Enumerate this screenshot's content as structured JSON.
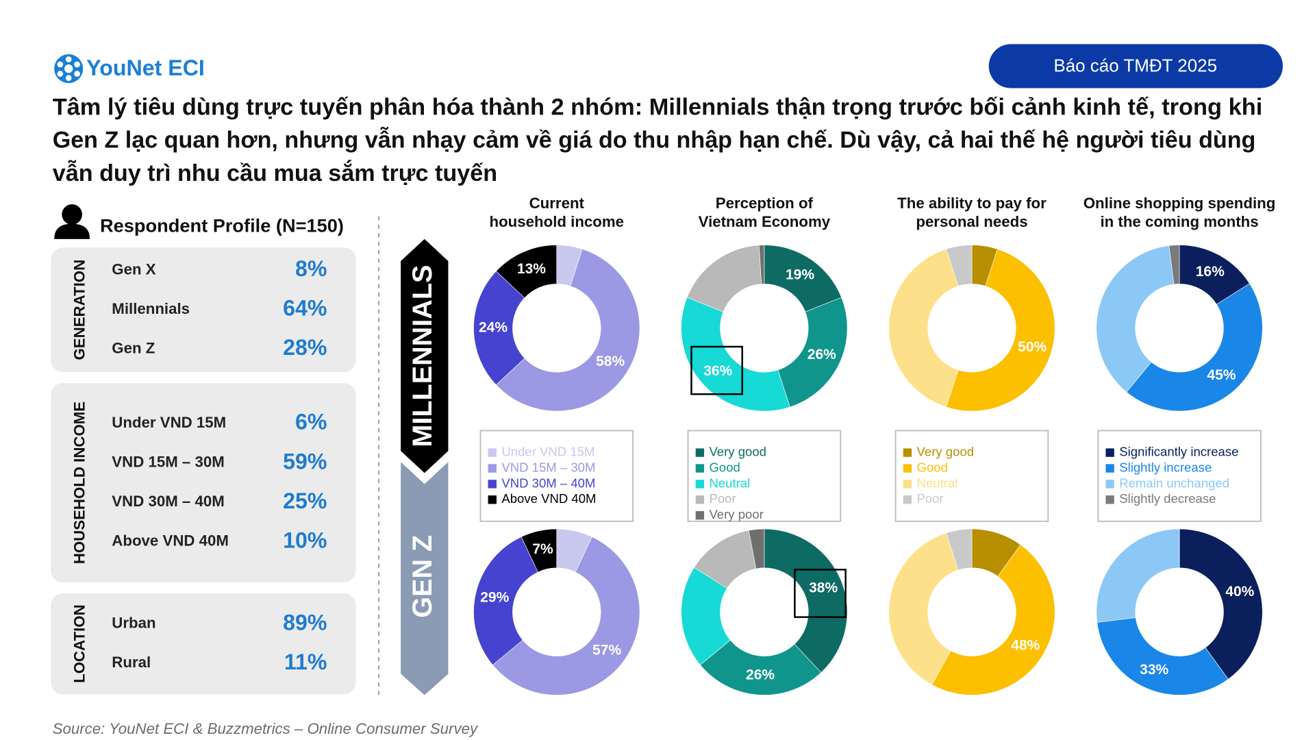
{
  "header": {
    "logo": "YouNet ECI",
    "badge": "Báo cáo TMĐT 2025",
    "title_lines": [
      "Tâm lý tiêu dùng trực tuyến phân hóa thành 2 nhóm: Millennials thận trọng trước bối cảnh kinh tế, trong khi",
      "Gen Z lạc quan hơn, nhưng vẫn nhạy cảm về giá do thu nhập hạn chế. Dù vậy, cả hai thế hệ người tiêu dùng",
      "vẫn duy trì nhu cầu mua sắm trực tuyến"
    ]
  },
  "profile": {
    "title": "Respondent Profile (N=150)",
    "sections": [
      {
        "label": "GENERATION",
        "items": [
          [
            "Gen X",
            "8%"
          ],
          [
            "Millennials",
            "64%"
          ],
          [
            "Gen Z",
            "28%"
          ]
        ]
      },
      {
        "label": "HOUSEHOLD INCOME",
        "items": [
          [
            "Under VND 15M",
            "6%"
          ],
          [
            "VND 15M – 30M",
            "59%"
          ],
          [
            "VND 30M – 40M",
            "25%"
          ],
          [
            "Above VND 40M",
            "10%"
          ]
        ]
      },
      {
        "label": "LOCATION",
        "items": [
          [
            "Urban",
            "89%"
          ],
          [
            "Rural",
            "11%"
          ]
        ]
      }
    ]
  },
  "rows": [
    "MILLENNIALS",
    "GEN Z"
  ],
  "chart_data": [
    {
      "type": "donut",
      "title": [
        "Current",
        "household income"
      ],
      "categories": [
        "Under VND 15M",
        "VND 15M – 30M",
        "VND 30M – 40M",
        "Above VND 40M"
      ],
      "colors": [
        "#c9c8ef",
        "#9b99e3",
        "#4543cf",
        "#000000"
      ],
      "series": [
        {
          "values": [
            5,
            58,
            24,
            13
          ],
          "value_labels": [
            null,
            "58%",
            "24%",
            "13%"
          ]
        },
        {
          "values": [
            7,
            57,
            29,
            7
          ],
          "value_labels": [
            null,
            "57%",
            "29%",
            "7%"
          ]
        }
      ]
    },
    {
      "type": "donut",
      "title": [
        "Perception of",
        "Vietnam Economy"
      ],
      "categories": [
        "Very good",
        "Good",
        "Neutral",
        "Poor",
        "Very poor"
      ],
      "colors": [
        "#0e6b63",
        "#10958d",
        "#17d9d5",
        "#b9b9b9",
        "#6f6f6f"
      ],
      "series": [
        {
          "values": [
            19,
            26,
            36,
            18,
            1
          ],
          "value_labels": [
            "19%",
            "26%",
            "36%",
            null,
            null
          ]
        },
        {
          "values": [
            38,
            26,
            20,
            13,
            3
          ],
          "value_labels": [
            "38%",
            "26%",
            null,
            null,
            null
          ]
        }
      ]
    },
    {
      "type": "donut",
      "title": [
        "The ability to pay for",
        "personal needs"
      ],
      "categories": [
        "Very good",
        "Good",
        "Neutral",
        "Poor"
      ],
      "colors": [
        "#b88f00",
        "#fcc000",
        "#fde08a",
        "#c9c9c9"
      ],
      "series": [
        {
          "values": [
            5,
            50,
            40,
            5
          ],
          "value_labels": [
            null,
            "50%",
            null,
            null
          ]
        },
        {
          "values": [
            10,
            48,
            37,
            5
          ],
          "value_labels": [
            null,
            "48%",
            null,
            null
          ]
        }
      ]
    },
    {
      "type": "donut",
      "title": [
        "Online shopping spending",
        "in the coming months"
      ],
      "categories": [
        "Significantly increase",
        "Slightly increase",
        "Remain unchanged",
        "Slightly decrease"
      ],
      "colors": [
        "#0a1f5c",
        "#1a86e8",
        "#8cc8f5",
        "#7a7a7a"
      ],
      "series": [
        {
          "values": [
            16,
            45,
            37,
            2
          ],
          "value_labels": [
            "16%",
            "45%",
            null,
            null
          ]
        },
        {
          "values": [
            40,
            33,
            27,
            0
          ],
          "value_labels": [
            "40%",
            "33%",
            null,
            null
          ]
        }
      ]
    }
  ],
  "source": "Source: YouNet ECI & Buzzmetrics – Online Consumer Survey"
}
